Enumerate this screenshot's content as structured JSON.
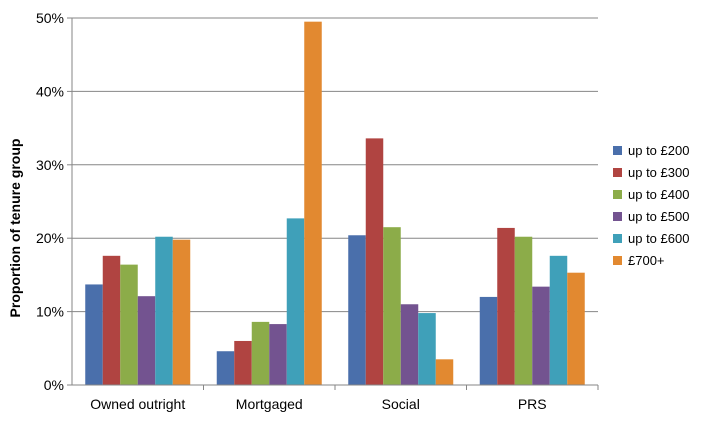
{
  "chart_data": {
    "type": "bar",
    "title": "",
    "xlabel": "",
    "ylabel": "Proportion of tenure group",
    "ylim": [
      0,
      50
    ],
    "yticks": [
      "0%",
      "10%",
      "20%",
      "30%",
      "40%",
      "50%"
    ],
    "grid": true,
    "legend_position": "right",
    "categories": [
      "Owned outright",
      "Mortgaged",
      "Social",
      "PRS"
    ],
    "series": [
      {
        "name": "up to £200",
        "color": "#4a6fab",
        "values": [
          13.7,
          4.6,
          20.4,
          12.0
        ]
      },
      {
        "name": "up to £300",
        "color": "#b04441",
        "values": [
          17.6,
          6.0,
          33.6,
          21.4
        ]
      },
      {
        "name": "up to £400",
        "color": "#8cac49",
        "values": [
          16.4,
          8.6,
          21.5,
          20.2
        ]
      },
      {
        "name": "up to £500",
        "color": "#735390",
        "values": [
          12.1,
          8.3,
          11.0,
          13.4
        ]
      },
      {
        "name": "up to £600",
        "color": "#3fa0b9",
        "values": [
          20.2,
          22.7,
          9.8,
          17.6
        ]
      },
      {
        "name": "£700+",
        "color": "#e28930",
        "values": [
          19.8,
          49.5,
          3.5,
          15.3
        ]
      }
    ]
  }
}
